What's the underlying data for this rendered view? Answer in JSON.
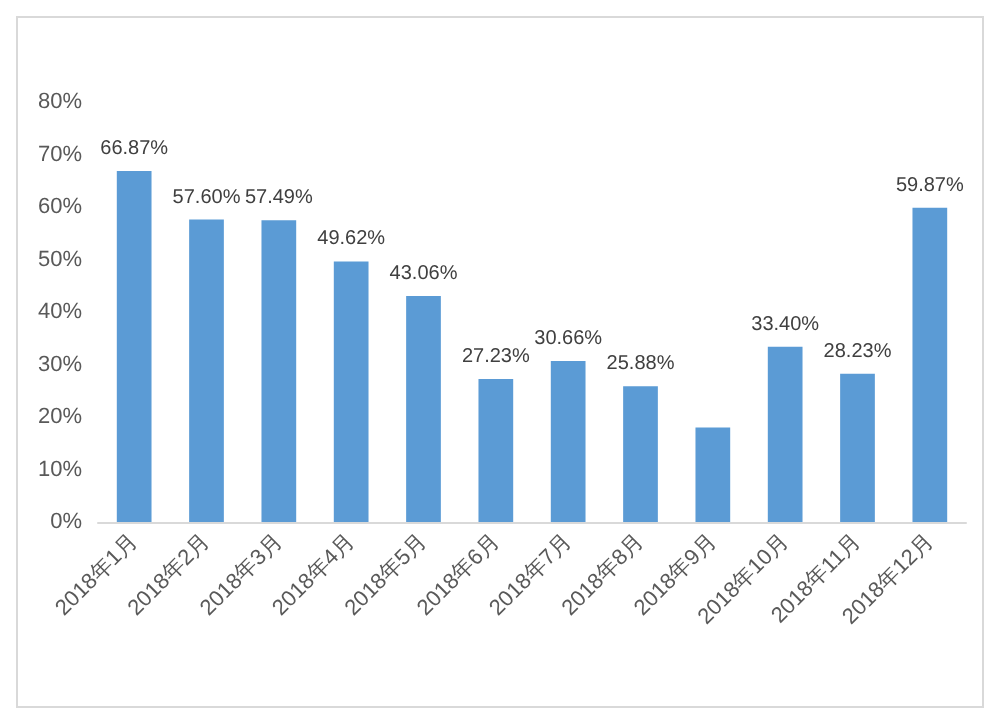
{
  "chart_data": {
    "type": "bar",
    "categories": [
      "2018年1月",
      "2018年2月",
      "2018年3月",
      "2018年4月",
      "2018年5月",
      "2018年6月",
      "2018年7月",
      "2018年8月",
      "2018年9月",
      "2018年10月",
      "2018年11月",
      "2018年12月"
    ],
    "values": [
      66.87,
      57.6,
      57.49,
      49.62,
      43.06,
      27.23,
      30.66,
      25.88,
      18,
      33.4,
      28.23,
      59.87
    ],
    "value_labels": [
      "66.87%",
      "57.60%",
      "57.49%",
      "49.62%",
      "43.06%",
      "27.23%",
      "30.66%",
      "25.88%",
      null,
      "33.40%",
      "28.23%",
      "59.87%"
    ],
    "color": "#5b9bd5",
    "ylim": [
      0,
      80
    ],
    "yticks": [
      {
        "value": 0,
        "label": "0%"
      },
      {
        "value": 10,
        "label": "10%"
      },
      {
        "value": 20,
        "label": "20%"
      },
      {
        "value": 30,
        "label": "30%"
      },
      {
        "value": 40,
        "label": "40%"
      },
      {
        "value": 50,
        "label": "50%"
      },
      {
        "value": 60,
        "label": "60%"
      },
      {
        "value": 70,
        "label": "70%"
      },
      {
        "value": 80,
        "label": "80%"
      }
    ],
    "grid": false
  }
}
